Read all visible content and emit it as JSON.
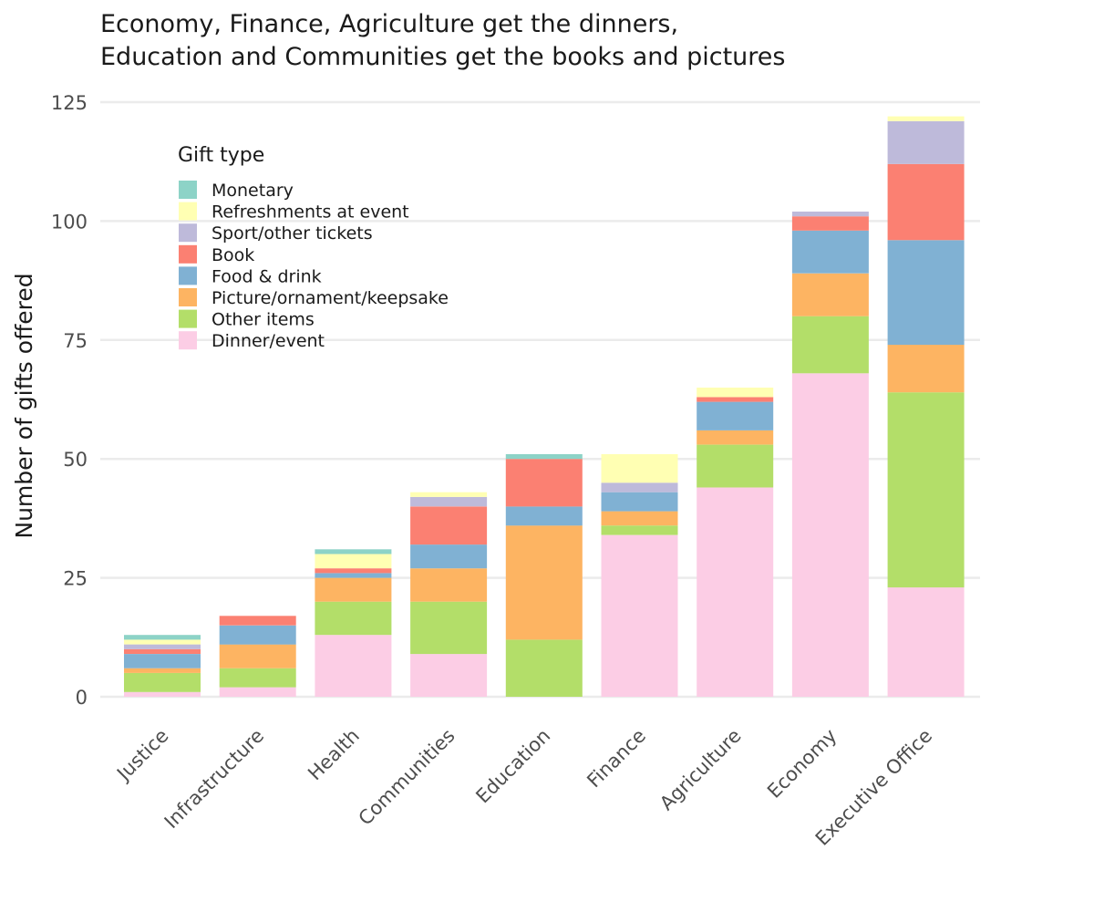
{
  "chart_data": {
    "type": "bar",
    "stacked": true,
    "title_lines": [
      "Economy, Finance, Agriculture get the dinners,",
      "Education and Communities get the books and pictures"
    ],
    "xlabel": "",
    "ylabel": "Number of gifts offered",
    "ylim": [
      0,
      125
    ],
    "yticks": [
      0,
      25,
      50,
      75,
      100,
      125
    ],
    "grid": "horizontal",
    "legend_title": "Gift type",
    "legend_position": "top-left",
    "categories": [
      "Justice",
      "Infrastructure",
      "Health",
      "Communities",
      "Education",
      "Finance",
      "Agriculture",
      "Economy",
      "Executive Office"
    ],
    "series": [
      {
        "name": "Dinner/event",
        "color": "#FCCDE5",
        "values": [
          1,
          2,
          13,
          9,
          0,
          34,
          44,
          68,
          23
        ]
      },
      {
        "name": "Other items",
        "color": "#B3DE69",
        "values": [
          4,
          4,
          7,
          11,
          12,
          2,
          9,
          12,
          41
        ]
      },
      {
        "name": "Picture/ornament/keepsake",
        "color": "#FDB462",
        "values": [
          1,
          5,
          5,
          7,
          24,
          3,
          3,
          9,
          10
        ]
      },
      {
        "name": "Food & drink",
        "color": "#80B1D3",
        "values": [
          3,
          4,
          1,
          5,
          4,
          4,
          6,
          9,
          22
        ]
      },
      {
        "name": "Book",
        "color": "#FB8072",
        "values": [
          1,
          2,
          1,
          8,
          10,
          0,
          1,
          3,
          16
        ]
      },
      {
        "name": "Sport/other tickets",
        "color": "#BEBADA",
        "values": [
          1,
          0,
          0,
          2,
          0,
          2,
          0,
          1,
          9
        ]
      },
      {
        "name": "Refreshments at event",
        "color": "#FFFFB3",
        "values": [
          1,
          0,
          3,
          1,
          0,
          6,
          2,
          0,
          1
        ]
      },
      {
        "name": "Monetary",
        "color": "#8DD3C7",
        "values": [
          1,
          0,
          1,
          0,
          1,
          0,
          0,
          0,
          0
        ]
      }
    ],
    "legend_order": [
      "Monetary",
      "Refreshments at event",
      "Sport/other tickets",
      "Book",
      "Food & drink",
      "Picture/ornament/keepsake",
      "Other items",
      "Dinner/event"
    ]
  }
}
